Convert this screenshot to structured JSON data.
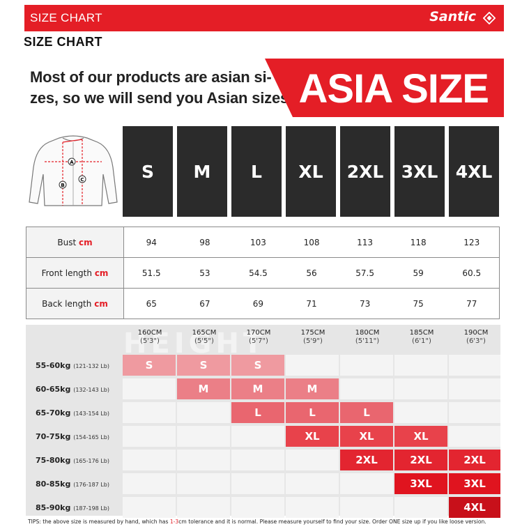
{
  "header": {
    "title": "SIZE CHART",
    "brand": "Santic"
  },
  "subtitle": "SIZE CHART",
  "intro": {
    "line1": "Most of our products are asian si-",
    "line2": "zes, so we will send you Asian sizes"
  },
  "banner": "ASIA SIZE",
  "sizes": [
    "S",
    "M",
    "L",
    "XL",
    "2XL",
    "3XL",
    "4XL"
  ],
  "diagram_points": [
    "A",
    "B",
    "C"
  ],
  "measurements": [
    {
      "label": "Bust",
      "unit": "cm",
      "values": [
        "94",
        "98",
        "103",
        "108",
        "113",
        "118",
        "123"
      ]
    },
    {
      "label": "Front length",
      "unit": "cm",
      "values": [
        "51.5",
        "53",
        "54.5",
        "56",
        "57.5",
        "59",
        "60.5"
      ]
    },
    {
      "label": "Back length",
      "unit": "cm",
      "values": [
        "65",
        "67",
        "69",
        "71",
        "73",
        "75",
        "77"
      ]
    }
  ],
  "height_watermark": "HEIGHT",
  "heights": [
    {
      "cm": "160CM",
      "imp": "(5'3\")"
    },
    {
      "cm": "165CM",
      "imp": "(5'5\")"
    },
    {
      "cm": "170CM",
      "imp": "(5'7\")"
    },
    {
      "cm": "175CM",
      "imp": "(5'9\")"
    },
    {
      "cm": "180CM",
      "imp": "(5'11\")"
    },
    {
      "cm": "185CM",
      "imp": "(6'1\")"
    },
    {
      "cm": "190CM",
      "imp": "(6'3\")"
    }
  ],
  "weights": [
    {
      "kg": "55-60kg",
      "lb": "(121-132 Lb)"
    },
    {
      "kg": "60-65kg",
      "lb": "(132-143 Lb)"
    },
    {
      "kg": "65-70kg",
      "lb": "(143-154 Lb)"
    },
    {
      "kg": "70-75kg",
      "lb": "(154-165 Lb)"
    },
    {
      "kg": "75-80kg",
      "lb": "(165-176 Lb)"
    },
    {
      "kg": "80-85kg",
      "lb": "(176-187 Lb)"
    },
    {
      "kg": "85-90kg",
      "lb": "(187-198 Lb)"
    }
  ],
  "size_grid": [
    [
      "S",
      "S",
      "S",
      "",
      "",
      "",
      ""
    ],
    [
      "",
      "M",
      "M",
      "M",
      "",
      "",
      ""
    ],
    [
      "",
      "",
      "L",
      "L",
      "L",
      "",
      ""
    ],
    [
      "",
      "",
      "",
      "XL",
      "XL",
      "XL",
      ""
    ],
    [
      "",
      "",
      "",
      "",
      "2XL",
      "2XL",
      "2XL"
    ],
    [
      "",
      "",
      "",
      "",
      "",
      "3XL",
      "3XL"
    ],
    [
      "",
      "",
      "",
      "",
      "",
      "",
      "4XL"
    ]
  ],
  "size_colors": {
    "S": "#ef9aa0",
    "M": "#eb7f87",
    "L": "#e9666f",
    "XL": "#e8424b",
    "2XL": "#e32530",
    "3XL": "#e0141f",
    "4XL": "#c8101a"
  },
  "tips": {
    "pre": "TIPS:  the above size is measured by hand, which has ",
    "tolerance": "1-3",
    "post": "cm tolerance and it is normal. Please measure yourself to find your size. Order ONE size up if you like loose version."
  },
  "colors": {
    "accent": "#e41e26",
    "dark": "#2b2b2b"
  }
}
